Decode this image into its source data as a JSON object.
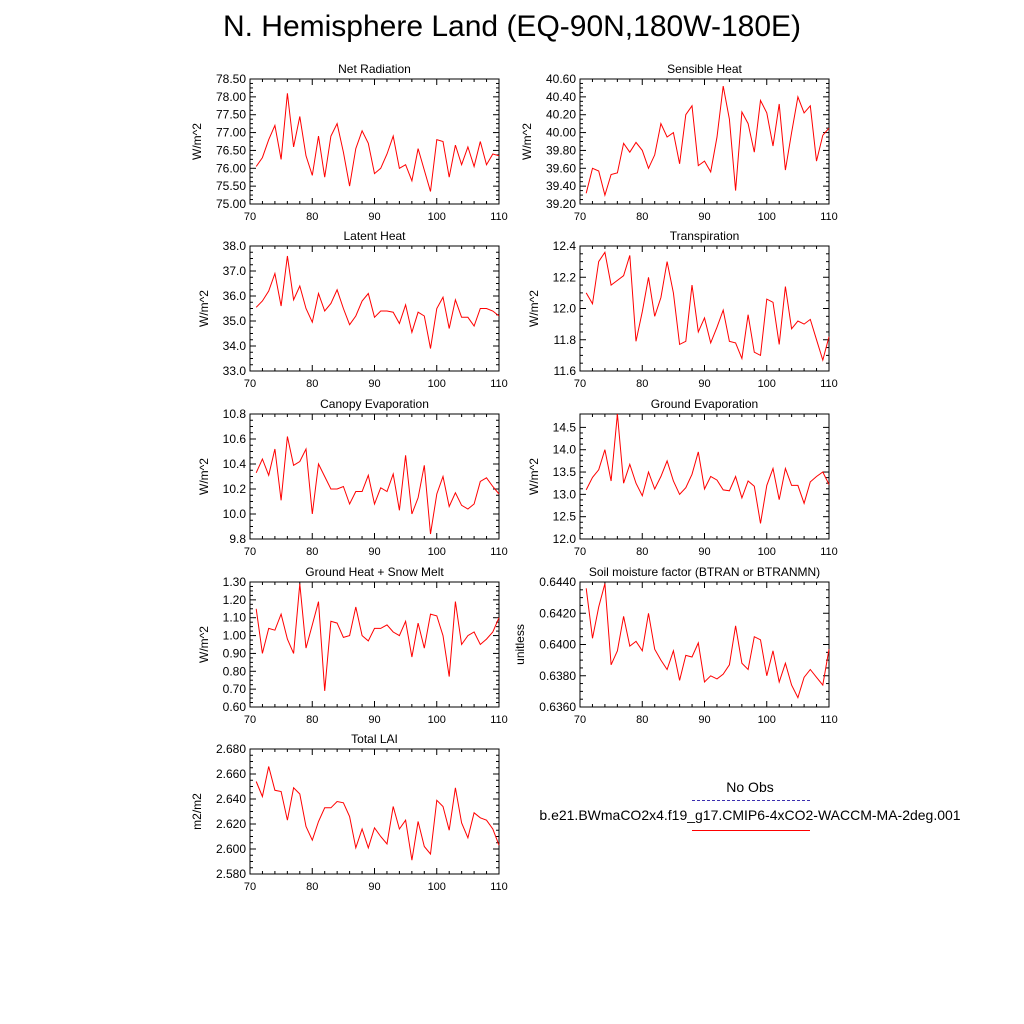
{
  "title": "N. Hemisphere Land (EQ-90N,180W-180E)",
  "legend": {
    "obs_label": "No Obs",
    "case_label": "b.e21.BWmaCO2x4.f19_g17.CMIP6-4xCO2-WACCM-MA-2deg.001",
    "obs_color": "#3b2fb0",
    "case_color": "#ff0000"
  },
  "chart_data": [
    {
      "type": "line",
      "title": "Net Radiation",
      "ylabel": "W/m^2",
      "xlim": [
        70,
        110
      ],
      "ylim": [
        75.0,
        78.5
      ],
      "yticks": [
        75.0,
        75.5,
        76.0,
        76.5,
        77.0,
        77.5,
        78.0,
        78.5
      ],
      "ytick_labels": [
        "75.00",
        "75.50",
        "76.00",
        "76.50",
        "77.00",
        "77.50",
        "78.00",
        "78.50"
      ],
      "xticks": [
        70,
        80,
        90,
        100,
        110
      ],
      "xtick_labels": [
        "70",
        "80",
        "90",
        "100",
        "110"
      ],
      "series": [
        {
          "color": "#ff0000",
          "x_start": 71,
          "values": [
            76.05,
            76.3,
            76.8,
            77.2,
            76.25,
            78.1,
            76.6,
            77.45,
            76.35,
            75.8,
            76.9,
            75.75,
            76.9,
            77.25,
            76.45,
            75.5,
            76.55,
            77.05,
            76.7,
            75.85,
            76.0,
            76.4,
            76.9,
            76.0,
            76.1,
            75.65,
            76.55,
            75.95,
            75.35,
            76.8,
            76.75,
            75.75,
            76.65,
            76.1,
            76.6,
            76.05,
            76.75,
            76.1,
            76.4,
            76.35
          ]
        }
      ]
    },
    {
      "type": "line",
      "title": "Sensible Heat",
      "ylabel": "W/m^2",
      "xlim": [
        70,
        110
      ],
      "ylim": [
        39.2,
        40.6
      ],
      "yticks": [
        39.2,
        39.4,
        39.6,
        39.8,
        40.0,
        40.2,
        40.4,
        40.6
      ],
      "ytick_labels": [
        "39.20",
        "39.40",
        "39.60",
        "39.80",
        "40.00",
        "40.20",
        "40.40",
        "40.60"
      ],
      "xticks": [
        70,
        80,
        90,
        100,
        110
      ],
      "xtick_labels": [
        "70",
        "80",
        "90",
        "100",
        "110"
      ],
      "series": [
        {
          "color": "#ff0000",
          "x_start": 71,
          "values": [
            39.32,
            39.6,
            39.57,
            39.3,
            39.53,
            39.55,
            39.88,
            39.78,
            39.89,
            39.8,
            39.6,
            39.75,
            40.1,
            39.95,
            40.0,
            39.65,
            40.2,
            40.3,
            39.63,
            39.68,
            39.56,
            39.95,
            40.52,
            40.15,
            39.35,
            40.23,
            40.1,
            39.78,
            40.36,
            40.22,
            39.85,
            40.32,
            39.58,
            40.0,
            40.4,
            40.22,
            40.3,
            39.68,
            39.97,
            40.05
          ]
        }
      ]
    },
    {
      "type": "line",
      "title": "Latent Heat",
      "ylabel": "W/m^2",
      "xlim": [
        70,
        110
      ],
      "ylim": [
        33.0,
        38.0
      ],
      "yticks": [
        33.0,
        34.0,
        35.0,
        36.0,
        37.0,
        38.0
      ],
      "ytick_labels": [
        "33.0",
        "34.0",
        "35.0",
        "36.0",
        "37.0",
        "38.0"
      ],
      "xticks": [
        70,
        80,
        90,
        100,
        110
      ],
      "xtick_labels": [
        "70",
        "80",
        "90",
        "100",
        "110"
      ],
      "series": [
        {
          "color": "#ff0000",
          "x_start": 71,
          "values": [
            35.55,
            35.8,
            36.2,
            36.9,
            35.6,
            37.6,
            35.85,
            36.4,
            35.5,
            34.95,
            36.1,
            35.4,
            35.7,
            36.25,
            35.5,
            34.85,
            35.2,
            35.8,
            36.1,
            35.15,
            35.4,
            35.4,
            35.35,
            34.9,
            35.65,
            34.55,
            35.35,
            35.2,
            33.9,
            35.5,
            35.95,
            34.7,
            35.85,
            35.15,
            35.15,
            34.8,
            35.5,
            35.5,
            35.4,
            35.2
          ]
        }
      ]
    },
    {
      "type": "line",
      "title": "Transpiration",
      "ylabel": "W/m^2",
      "xlim": [
        70,
        110
      ],
      "ylim": [
        11.6,
        12.4
      ],
      "yticks": [
        11.6,
        11.8,
        12.0,
        12.2,
        12.4
      ],
      "ytick_labels": [
        "11.6",
        "11.8",
        "12.0",
        "12.2",
        "12.4"
      ],
      "xticks": [
        70,
        80,
        90,
        100,
        110
      ],
      "xtick_labels": [
        "70",
        "80",
        "90",
        "100",
        "110"
      ],
      "series": [
        {
          "color": "#ff0000",
          "x_start": 71,
          "values": [
            12.1,
            12.03,
            12.3,
            12.36,
            12.15,
            12.18,
            12.21,
            12.34,
            11.79,
            11.98,
            12.2,
            11.95,
            12.07,
            12.3,
            12.1,
            11.77,
            11.79,
            12.15,
            11.85,
            11.94,
            11.78,
            11.88,
            11.99,
            11.79,
            11.78,
            11.68,
            11.96,
            11.72,
            11.7,
            12.06,
            12.04,
            11.77,
            12.14,
            11.87,
            11.92,
            11.9,
            11.93,
            11.8,
            11.67,
            11.82
          ]
        }
      ]
    },
    {
      "type": "line",
      "title": "Canopy Evaporation",
      "ylabel": "W/m^2",
      "xlim": [
        70,
        110
      ],
      "ylim": [
        9.8,
        10.8
      ],
      "yticks": [
        9.8,
        10.0,
        10.2,
        10.4,
        10.6,
        10.8
      ],
      "ytick_labels": [
        "9.8",
        "10.0",
        "10.2",
        "10.4",
        "10.6",
        "10.8"
      ],
      "xticks": [
        70,
        80,
        90,
        100,
        110
      ],
      "xtick_labels": [
        "70",
        "80",
        "90",
        "100",
        "110"
      ],
      "series": [
        {
          "color": "#ff0000",
          "x_start": 71,
          "values": [
            10.33,
            10.44,
            10.31,
            10.52,
            10.11,
            10.62,
            10.39,
            10.42,
            10.52,
            10.0,
            10.4,
            10.3,
            10.2,
            10.2,
            10.22,
            10.08,
            10.18,
            10.18,
            10.31,
            10.08,
            10.21,
            10.18,
            10.32,
            10.03,
            10.47,
            10.0,
            10.13,
            10.39,
            9.84,
            10.16,
            10.3,
            10.06,
            10.17,
            10.07,
            10.04,
            10.08,
            10.26,
            10.29,
            10.22,
            10.16
          ]
        }
      ]
    },
    {
      "type": "line",
      "title": "Ground Evaporation",
      "ylabel": "W/m^2",
      "xlim": [
        70,
        110
      ],
      "ylim": [
        12.0,
        14.8
      ],
      "yticks": [
        12.0,
        12.5,
        13.0,
        13.5,
        14.0,
        14.5
      ],
      "ytick_labels": [
        "12.0",
        "12.5",
        "13.0",
        "13.5",
        "14.0",
        "14.5"
      ],
      "xticks": [
        70,
        80,
        90,
        100,
        110
      ],
      "xtick_labels": [
        "70",
        "80",
        "90",
        "100",
        "110"
      ],
      "series": [
        {
          "color": "#ff0000",
          "x_start": 71,
          "values": [
            13.1,
            13.38,
            13.55,
            14.0,
            13.3,
            14.8,
            13.25,
            13.67,
            13.25,
            12.97,
            13.5,
            13.12,
            13.4,
            13.75,
            13.3,
            13.0,
            13.15,
            13.45,
            13.95,
            13.12,
            13.4,
            13.32,
            13.1,
            13.08,
            13.4,
            12.92,
            13.3,
            13.18,
            12.35,
            13.2,
            13.58,
            12.88,
            13.58,
            13.2,
            13.2,
            12.8,
            13.28,
            13.4,
            13.5,
            13.22
          ]
        }
      ]
    },
    {
      "type": "line",
      "title": "Ground Heat + Snow Melt",
      "ylabel": "W/m^2",
      "xlim": [
        70,
        110
      ],
      "ylim": [
        0.6,
        1.3
      ],
      "yticks": [
        0.6,
        0.7,
        0.8,
        0.9,
        1.0,
        1.1,
        1.2,
        1.3
      ],
      "ytick_labels": [
        "0.60",
        "0.70",
        "0.80",
        "0.90",
        "1.00",
        "1.10",
        "1.20",
        "1.30"
      ],
      "xticks": [
        70,
        80,
        90,
        100,
        110
      ],
      "xtick_labels": [
        "70",
        "80",
        "90",
        "100",
        "110"
      ],
      "series": [
        {
          "color": "#ff0000",
          "x_start": 71,
          "values": [
            1.15,
            0.9,
            1.04,
            1.03,
            1.12,
            0.98,
            0.9,
            1.29,
            0.93,
            1.06,
            1.19,
            0.69,
            1.08,
            1.07,
            0.99,
            1.0,
            1.16,
            1.0,
            0.97,
            1.04,
            1.04,
            1.06,
            1.02,
            1.0,
            1.08,
            0.88,
            1.07,
            0.93,
            1.12,
            1.11,
            1.0,
            0.77,
            1.19,
            0.95,
            1.0,
            1.02,
            0.95,
            0.98,
            1.02,
            1.1
          ]
        }
      ]
    },
    {
      "type": "line",
      "title": "Soil moisture factor (BTRAN or BTRANMN)",
      "ylabel": "unitless",
      "xlim": [
        70,
        110
      ],
      "ylim": [
        0.636,
        0.644
      ],
      "yticks": [
        0.636,
        0.638,
        0.64,
        0.642,
        0.644
      ],
      "ytick_labels": [
        "0.6360",
        "0.6380",
        "0.6400",
        "0.6420",
        "0.6440"
      ],
      "xticks": [
        70,
        80,
        90,
        100,
        110
      ],
      "xtick_labels": [
        "70",
        "80",
        "90",
        "100",
        "110"
      ],
      "series": [
        {
          "color": "#ff0000",
          "x_start": 71,
          "values": [
            0.6436,
            0.6404,
            0.6424,
            0.6439,
            0.6387,
            0.6396,
            0.6418,
            0.6399,
            0.6402,
            0.6396,
            0.642,
            0.6397,
            0.639,
            0.6384,
            0.6396,
            0.6377,
            0.6393,
            0.6392,
            0.6401,
            0.6376,
            0.638,
            0.6378,
            0.6381,
            0.6387,
            0.6412,
            0.6388,
            0.6384,
            0.6405,
            0.6403,
            0.638,
            0.6396,
            0.6376,
            0.6388,
            0.6374,
            0.6366,
            0.6379,
            0.6384,
            0.6379,
            0.6374,
            0.6397
          ]
        }
      ]
    },
    {
      "type": "line",
      "title": "Total LAI",
      "ylabel": "m2/m2",
      "xlim": [
        70,
        110
      ],
      "ylim": [
        2.58,
        2.68
      ],
      "yticks": [
        2.58,
        2.6,
        2.62,
        2.64,
        2.66,
        2.68
      ],
      "ytick_labels": [
        "2.580",
        "2.600",
        "2.620",
        "2.640",
        "2.660",
        "2.680"
      ],
      "xticks": [
        70,
        80,
        90,
        100,
        110
      ],
      "xtick_labels": [
        "70",
        "80",
        "90",
        "100",
        "110"
      ],
      "series": [
        {
          "color": "#ff0000",
          "x_start": 71,
          "values": [
            2.654,
            2.642,
            2.666,
            2.647,
            2.646,
            2.623,
            2.649,
            2.644,
            2.618,
            2.607,
            2.622,
            2.633,
            2.633,
            2.638,
            2.637,
            2.626,
            2.601,
            2.616,
            2.601,
            2.617,
            2.61,
            2.604,
            2.634,
            2.616,
            2.623,
            2.591,
            2.622,
            2.602,
            2.596,
            2.639,
            2.634,
            2.615,
            2.649,
            2.621,
            2.609,
            2.629,
            2.625,
            2.623,
            2.616,
            2.603
          ]
        }
      ]
    }
  ]
}
